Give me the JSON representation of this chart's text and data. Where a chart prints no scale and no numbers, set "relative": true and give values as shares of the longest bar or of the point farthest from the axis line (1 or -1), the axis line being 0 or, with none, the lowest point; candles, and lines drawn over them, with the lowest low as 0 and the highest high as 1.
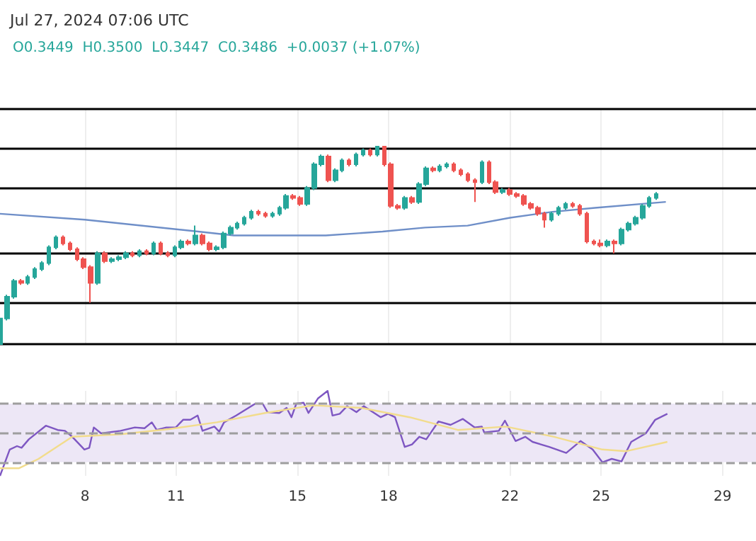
{
  "chart_data": [
    {
      "type": "candlestick",
      "title": "Jul 27, 2024 07:06 UTC",
      "subtitle": "O0.3449  H0.3500  L0.3447  C0.3486  +0.0037 (+1.07%)",
      "relative": true,
      "colors": [
        "#26a69a",
        "#26a69a",
        "#26a69a",
        "#ef5350",
        "#26a69a",
        "#26a69a",
        "#26a69a",
        "#26a69a",
        "#26a69a",
        "#ef5350",
        "#ef5350",
        "#ef5350",
        "#ef5350",
        "#ef5350",
        "#26a69a",
        "#ef5350",
        "#26a69a",
        "#26a69a",
        "#26a69a",
        "#ef5350",
        "#26a69a",
        "#ef5350",
        "#26a69a",
        "#ef5350",
        "#ef5350",
        "#26a69a",
        "#26a69a",
        "#ef5350",
        "#26a69a",
        "#ef5350",
        "#ef5350",
        "#26a69a",
        "#26a69a",
        "#26a69a",
        "#26a69a",
        "#26a69a",
        "#26a69a",
        "#ef5350",
        "#ef5350",
        "#26a69a",
        "#26a69a",
        "#26a69a",
        "#ef5350",
        "#ef5350",
        "#26a69a",
        "#26a69a",
        "#26a69a",
        "#ef5350",
        "#26a69a",
        "#26a69a",
        "#ef5350",
        "#26a69a",
        "#26a69a",
        "#ef5350",
        "#26a69a",
        "#ef5350",
        "#ef5350",
        "#ef5350",
        "#26a69a",
        "#ef5350",
        "#26a69a",
        "#26a69a",
        "#ef5350",
        "#26a69a",
        "#26a69a",
        "#ef5350",
        "#ef5350",
        "#ef5350",
        "#ef5350",
        "#26a69a",
        "#ef5350",
        "#ef5350",
        "#26a69a",
        "#ef5350",
        "#ef5350",
        "#ef5350",
        "#ef5350",
        "#ef5350",
        "#ef5350",
        "#26a69a",
        "#26a69a",
        "#26a69a",
        "#ef5350",
        "#ef5350",
        "#ef5350",
        "#ef5350",
        "#ef5350",
        "#26a69a",
        "#ef5350",
        "#26a69a",
        "#26a69a",
        "#26a69a",
        "#26a69a",
        "#26a69a",
        "#26a69a"
      ],
      "x": [
        5.2,
        5.43,
        5.66,
        5.89,
        6.12,
        6.35,
        6.58,
        6.81,
        7.04,
        7.27,
        7.5,
        7.73,
        7.96,
        8.19,
        8.42,
        8.65,
        8.88,
        9.11,
        9.34,
        9.57,
        9.8,
        10.03,
        10.26,
        10.49,
        10.72,
        10.95,
        11.18,
        11.41,
        11.64,
        11.87,
        12.1,
        12.33,
        12.56,
        12.79,
        13.02,
        13.25,
        13.48,
        13.71,
        13.94,
        14.17,
        14.4,
        14.63,
        14.86,
        15.09,
        15.32,
        15.55,
        15.78,
        16.01,
        16.24,
        16.47,
        16.7,
        16.93,
        17.16,
        17.39,
        17.62,
        17.85,
        18.08,
        18.31,
        18.54,
        18.77,
        19.0,
        19.23,
        19.46,
        19.69,
        19.92,
        20.15,
        20.38,
        20.61,
        20.84,
        21.07,
        21.3,
        21.53,
        21.76,
        21.99,
        22.22,
        22.45,
        22.68,
        22.91,
        23.14,
        23.37,
        23.6,
        23.83,
        24.06,
        24.29,
        24.52,
        24.75,
        24.98,
        25.21,
        25.44,
        25.67,
        25.9,
        26.13,
        26.36,
        26.59,
        26.82
      ],
      "ohlc": [
        [
          0,
          0.14,
          0,
          0.13
        ],
        [
          0.13,
          0.25,
          0.12,
          0.24
        ],
        [
          0.24,
          0.33,
          0.23,
          0.32
        ],
        [
          0.32,
          0.33,
          0.3,
          0.31
        ],
        [
          0.31,
          0.35,
          0.3,
          0.34
        ],
        [
          0.34,
          0.39,
          0.33,
          0.38
        ],
        [
          0.38,
          0.42,
          0.37,
          0.41
        ],
        [
          0.41,
          0.5,
          0.4,
          0.49
        ],
        [
          0.49,
          0.55,
          0.48,
          0.54
        ],
        [
          0.54,
          0.55,
          0.5,
          0.51
        ],
        [
          0.51,
          0.52,
          0.47,
          0.48
        ],
        [
          0.48,
          0.49,
          0.42,
          0.43
        ],
        [
          0.43,
          0.44,
          0.38,
          0.39
        ],
        [
          0.39,
          0.4,
          0.21,
          0.31
        ],
        [
          0.31,
          0.47,
          0.3,
          0.46
        ],
        [
          0.46,
          0.47,
          0.41,
          0.42
        ],
        [
          0.42,
          0.44,
          0.41,
          0.43
        ],
        [
          0.43,
          0.45,
          0.42,
          0.44
        ],
        [
          0.44,
          0.47,
          0.43,
          0.46
        ],
        [
          0.46,
          0.47,
          0.44,
          0.45
        ],
        [
          0.45,
          0.48,
          0.44,
          0.47
        ],
        [
          0.47,
          0.48,
          0.45,
          0.46
        ],
        [
          0.46,
          0.52,
          0.45,
          0.51
        ],
        [
          0.51,
          0.52,
          0.45,
          0.46
        ],
        [
          0.46,
          0.47,
          0.44,
          0.45
        ],
        [
          0.45,
          0.5,
          0.44,
          0.49
        ],
        [
          0.49,
          0.53,
          0.48,
          0.52
        ],
        [
          0.52,
          0.53,
          0.5,
          0.51
        ],
        [
          0.51,
          0.6,
          0.5,
          0.55
        ],
        [
          0.55,
          0.56,
          0.5,
          0.51
        ],
        [
          0.51,
          0.52,
          0.47,
          0.48
        ],
        [
          0.48,
          0.5,
          0.47,
          0.49
        ],
        [
          0.49,
          0.57,
          0.48,
          0.56
        ],
        [
          0.56,
          0.6,
          0.55,
          0.59
        ],
        [
          0.59,
          0.62,
          0.58,
          0.61
        ],
        [
          0.61,
          0.65,
          0.6,
          0.64
        ],
        [
          0.64,
          0.68,
          0.63,
          0.67
        ],
        [
          0.67,
          0.68,
          0.65,
          0.66
        ],
        [
          0.66,
          0.67,
          0.64,
          0.65
        ],
        [
          0.65,
          0.67,
          0.64,
          0.66
        ],
        [
          0.66,
          0.7,
          0.65,
          0.69
        ],
        [
          0.69,
          0.76,
          0.68,
          0.75
        ],
        [
          0.75,
          0.76,
          0.73,
          0.74
        ],
        [
          0.74,
          0.75,
          0.7,
          0.71
        ],
        [
          0.71,
          0.8,
          0.7,
          0.79
        ],
        [
          0.79,
          0.92,
          0.78,
          0.91
        ],
        [
          0.91,
          0.96,
          0.9,
          0.95
        ],
        [
          0.95,
          0.96,
          0.82,
          0.83
        ],
        [
          0.83,
          0.89,
          0.82,
          0.88
        ],
        [
          0.88,
          0.94,
          0.87,
          0.93
        ],
        [
          0.93,
          0.94,
          0.9,
          0.91
        ],
        [
          0.91,
          0.97,
          0.9,
          0.96
        ],
        [
          0.96,
          0.99,
          0.95,
          0.98
        ],
        [
          0.98,
          0.99,
          0.95,
          0.96
        ],
        [
          0.96,
          1,
          0.95,
          1
        ],
        [
          1,
          1,
          0.9,
          0.91
        ],
        [
          0.91,
          0.92,
          0.69,
          0.7
        ],
        [
          0.7,
          0.71,
          0.68,
          0.69
        ],
        [
          0.69,
          0.75,
          0.68,
          0.74
        ],
        [
          0.74,
          0.75,
          0.71,
          0.72
        ],
        [
          0.72,
          0.82,
          0.71,
          0.81
        ],
        [
          0.81,
          0.9,
          0.8,
          0.89
        ],
        [
          0.89,
          0.9,
          0.87,
          0.88
        ],
        [
          0.88,
          0.91,
          0.87,
          0.9
        ],
        [
          0.9,
          0.92,
          0.89,
          0.91
        ],
        [
          0.91,
          0.92,
          0.87,
          0.88
        ],
        [
          0.88,
          0.89,
          0.85,
          0.86
        ],
        [
          0.86,
          0.87,
          0.82,
          0.83
        ],
        [
          0.83,
          0.84,
          0.72,
          0.82
        ],
        [
          0.82,
          0.93,
          0.81,
          0.92
        ],
        [
          0.92,
          0.93,
          0.81,
          0.82
        ],
        [
          0.82,
          0.83,
          0.76,
          0.77
        ],
        [
          0.77,
          0.79,
          0.76,
          0.78
        ],
        [
          0.78,
          0.79,
          0.75,
          0.76
        ],
        [
          0.76,
          0.77,
          0.74,
          0.75
        ],
        [
          0.75,
          0.76,
          0.7,
          0.71
        ],
        [
          0.71,
          0.72,
          0.68,
          0.69
        ],
        [
          0.69,
          0.7,
          0.65,
          0.66
        ],
        [
          0.66,
          0.67,
          0.59,
          0.63
        ],
        [
          0.63,
          0.67,
          0.62,
          0.66
        ],
        [
          0.66,
          0.7,
          0.65,
          0.69
        ],
        [
          0.69,
          0.72,
          0.68,
          0.71
        ],
        [
          0.71,
          0.72,
          0.69,
          0.7
        ],
        [
          0.7,
          0.71,
          0.65,
          0.66
        ],
        [
          0.66,
          0.67,
          0.51,
          0.52
        ],
        [
          0.52,
          0.53,
          0.5,
          0.51
        ],
        [
          0.51,
          0.53,
          0.49,
          0.5
        ],
        [
          0.5,
          0.53,
          0.49,
          0.52
        ],
        [
          0.52,
          0.53,
          0.46,
          0.51
        ],
        [
          0.51,
          0.59,
          0.5,
          0.58
        ],
        [
          0.58,
          0.62,
          0.57,
          0.61
        ],
        [
          0.61,
          0.65,
          0.6,
          0.64
        ],
        [
          0.64,
          0.71,
          0.63,
          0.7
        ],
        [
          0.7,
          0.75,
          0.69,
          0.74
        ],
        [
          0.74,
          0.77,
          0.73,
          0.76
        ]
      ],
      "series": [
        {
          "type": "line",
          "color": "#6f8fc8",
          "x": [
            5.2,
            8.0,
            11.73,
            12.9,
            15.93,
            17.8,
            19.2,
            20.6,
            22.0,
            23.4,
            24.8,
            27.13
          ],
          "values": [
            0.66,
            0.63,
            0.57,
            0.55,
            0.55,
            0.57,
            0.59,
            0.6,
            0.64,
            0.67,
            0.69,
            0.72
          ]
        }
      ],
      "ref_lines": [
        {
          "axis": "y",
          "value": 1.19,
          "color": "#000000"
        },
        {
          "axis": "y",
          "value": 0.99,
          "color": "#000000"
        },
        {
          "axis": "y",
          "value": 0.79,
          "color": "#000000"
        },
        {
          "axis": "y",
          "value": 0.46,
          "color": "#000000"
        },
        {
          "axis": "y",
          "value": 0.21,
          "color": "#000000"
        },
        {
          "axis": "y",
          "value": 0,
          "color": "#000000"
        }
      ],
      "xlim": [
        5.2,
        30.1
      ],
      "xticks": [
        8,
        11,
        15,
        18,
        22,
        25,
        29
      ],
      "grid": "x",
      "tick_labels": false
    },
    {
      "type": "line",
      "relative": true,
      "series": [
        {
          "color": "#7e57c2",
          "x": [
            5.2,
            5.52,
            5.76,
            5.91,
            6.15,
            6.71,
            7.1,
            7.34,
            7.58,
            7.98,
            8.14,
            8.29,
            8.53,
            9.17,
            9.64,
            9.96,
            10.2,
            10.36,
            10.68,
            10.99,
            11.23,
            11.47,
            11.71,
            11.87,
            12.26,
            12.42,
            12.58,
            12.98,
            13.61,
            13.85,
            14.01,
            14.4,
            14.64,
            14.8,
            14.96,
            15.2,
            15.36,
            15.67,
            15.99,
            16.15,
            16.39,
            16.63,
            16.94,
            17.18,
            17.74,
            17.98,
            18.21,
            18.53,
            18.77,
            19.01,
            19.24,
            19.64,
            20.04,
            20.44,
            20.83,
            21.07,
            21.15,
            21.63,
            21.83,
            22.18,
            22.5,
            22.74,
            23.29,
            23.85,
            24.32,
            24.72,
            25.04,
            25.35,
            25.67,
            25.99,
            26.47,
            26.78,
            27.18
          ],
          "values": [
            0,
            0.31,
            0.35,
            0.33,
            0.43,
            0.59,
            0.54,
            0.53,
            0.46,
            0.31,
            0.33,
            0.57,
            0.5,
            0.53,
            0.57,
            0.56,
            0.63,
            0.54,
            0.57,
            0.57,
            0.66,
            0.66,
            0.71,
            0.53,
            0.58,
            0.52,
            0.63,
            0.71,
            0.85,
            0.85,
            0.75,
            0.74,
            0.8,
            0.69,
            0.85,
            0.86,
            0.74,
            0.91,
            1,
            0.71,
            0.73,
            0.82,
            0.75,
            0.82,
            0.69,
            0.73,
            0.69,
            0.34,
            0.37,
            0.46,
            0.43,
            0.64,
            0.6,
            0.67,
            0.57,
            0.58,
            0.51,
            0.53,
            0.65,
            0.41,
            0.46,
            0.4,
            0.34,
            0.27,
            0.41,
            0.31,
            0.16,
            0.2,
            0.17,
            0.4,
            0.5,
            0.66,
            0.73
          ]
        },
        {
          "color": "#f2dc8c",
          "x": [
            5.2,
            5.83,
            6.47,
            7.58,
            9.17,
            10.76,
            12.34,
            13.93,
            15.52,
            17.1,
            18.69,
            20.28,
            21.86,
            23.45,
            25.04,
            25.83,
            27.18
          ],
          "values": [
            0.09,
            0.09,
            0.2,
            0.46,
            0.49,
            0.55,
            0.63,
            0.74,
            0.83,
            0.8,
            0.69,
            0.54,
            0.58,
            0.46,
            0.31,
            0.29,
            0.4
          ]
        }
      ],
      "bands": [
        {
          "axis": "y",
          "from": 0.16,
          "to": 0.85,
          "color": "#ede7f6"
        }
      ],
      "ref_lines": [
        {
          "axis": "y",
          "value": 0.85,
          "color": "#9e9e9e",
          "line_style": "dashed"
        },
        {
          "axis": "y",
          "value": 0.5,
          "color": "#9e9e9e",
          "line_style": "dashed"
        },
        {
          "axis": "y",
          "value": 0.16,
          "color": "#9e9e9e",
          "line_style": "dashed"
        }
      ],
      "xlim": [
        5.2,
        30.1
      ],
      "xticks": [
        8,
        11,
        15,
        18,
        22,
        25,
        29
      ],
      "grid": "x",
      "tick_labels": "x"
    }
  ]
}
